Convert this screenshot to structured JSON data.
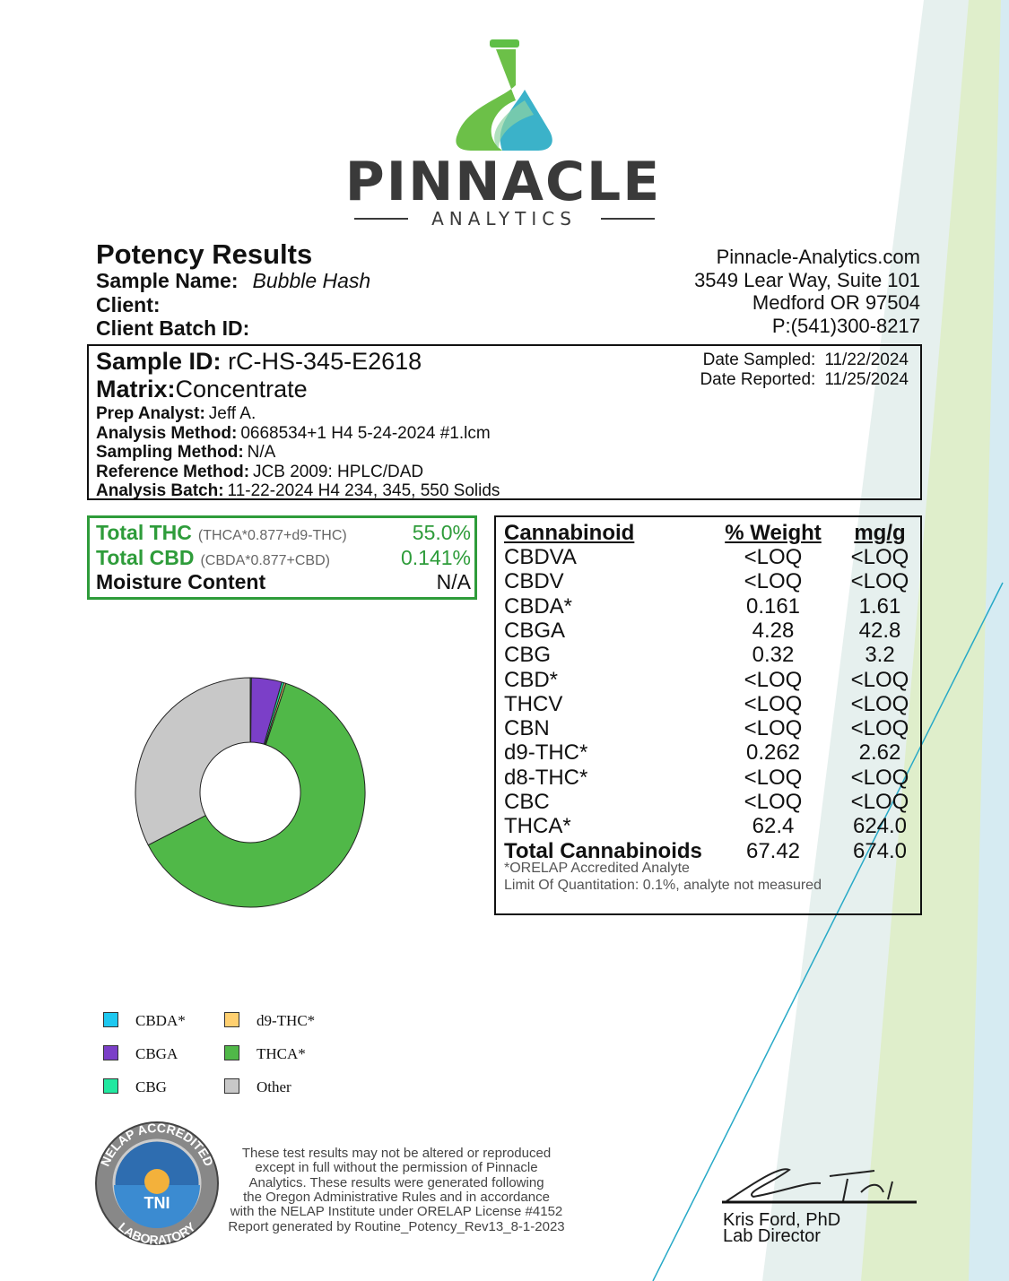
{
  "header": {
    "brand": "PINNACLE",
    "tagline": "ANALYTICS"
  },
  "report": {
    "title": "Potency Results",
    "fields": [
      {
        "label": "Sample Name:",
        "value": "Bubble Hash"
      },
      {
        "label": "Client:"
      },
      {
        "label": "Client Batch ID:"
      }
    ]
  },
  "lab": {
    "lines": [
      "Pinnacle-Analytics.com",
      "3549 Lear Way, Suite 101",
      "Medford OR 97504",
      "P:(541)300-8217"
    ]
  },
  "sample": {
    "id_label": "Sample ID:",
    "id": "rC-HS-345-E2618",
    "matrix_label": "Matrix:",
    "matrix": "Concentrate",
    "details": [
      {
        "label": "Prep Analyst:",
        "value": "Jeff A."
      },
      {
        "label": "Analysis Method:",
        "value": "0668534+1 H4 5-24-2024 #1.lcm"
      },
      {
        "label": "Sampling Method:",
        "value": "N/A"
      },
      {
        "label": "Reference Method:",
        "value": "JCB 2009: HPLC/DAD"
      },
      {
        "label": "Analysis Batch:",
        "value": "11-22-2024 H4 234, 345, 550 Solids"
      }
    ],
    "dates": [
      {
        "label": "Date Sampled:",
        "value": "11/22/2024"
      },
      {
        "label": "Date Reported:",
        "value": "11/25/2024"
      }
    ]
  },
  "summary": [
    {
      "label": "Total THC",
      "formula": "(THCA*0.877+d9-THC)",
      "value": "55.0%"
    },
    {
      "label": "Total CBD",
      "formula": "(CBDA*0.877+CBD)",
      "value": "0.141%"
    },
    {
      "label": "Moisture Content",
      "value": "N/A"
    }
  ],
  "table": {
    "headers": [
      "Cannabinoid",
      "% Weight",
      "mg/g"
    ],
    "rows": [
      [
        "CBDVA",
        "<LOQ",
        "<LOQ"
      ],
      [
        "CBDV",
        "<LOQ",
        "<LOQ"
      ],
      [
        "CBDA*",
        "0.161",
        "1.61"
      ],
      [
        "CBGA",
        "4.28",
        "42.8"
      ],
      [
        "CBG",
        "0.32",
        "3.2"
      ],
      [
        "CBD*",
        "<LOQ",
        "<LOQ"
      ],
      [
        "THCV",
        "<LOQ",
        "<LOQ"
      ],
      [
        "CBN",
        "<LOQ",
        "<LOQ"
      ],
      [
        "d9-THC*",
        "0.262",
        "2.62"
      ],
      [
        "d8-THC*",
        "<LOQ",
        "<LOQ"
      ],
      [
        "CBC",
        "<LOQ",
        "<LOQ"
      ],
      [
        "THCA*",
        "62.4",
        "624.0"
      ]
    ],
    "total": [
      "Total Cannabinoids",
      "67.42",
      "674.0"
    ],
    "notes": [
      "*ORELAP Accredited Analyte",
      "Limit Of Quantitation: 0.1%, analyte not measured"
    ]
  },
  "chart": {
    "type": "pie",
    "categories": [
      "CBDA*",
      "CBGA",
      "CBG",
      "d9-THC*",
      "THCA*",
      "Other"
    ],
    "colors": [
      "#1ec8f0",
      "#7b3fc8",
      "#22e8a0",
      "#ffd070",
      "#50b848",
      "#c8c8c8"
    ],
    "values": [
      0.161,
      4.28,
      0.32,
      0.262,
      62.4,
      32.58
    ]
  },
  "footer": {
    "badge": {
      "top": "NELAP ACCREDITED",
      "center": "TNI",
      "bottom": "LABORATORY"
    },
    "disclaimer": [
      "These test results may not be altered or reproduced",
      "except in full without the permission of Pinnacle",
      "Analytics. These results were generated following",
      "the Oregon Administrative Rules and in accordance",
      "with the NELAP Institute under ORELAP License #4152",
      "Report generated by Routine_Potency_Rev13_8-1-2023"
    ],
    "signer": "Kris Ford, PhD",
    "signer_title": "Lab Director"
  }
}
